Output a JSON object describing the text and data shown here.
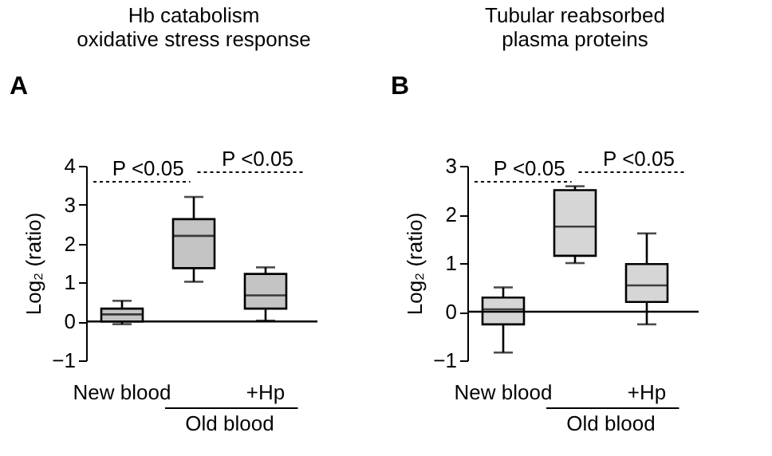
{
  "chart_data": [
    {
      "type": "box",
      "title": "Hb catabolism\noxidative stress response",
      "ylabel": "Log₂ (ratio)",
      "categories": [
        "New blood",
        null,
        "+Hp"
      ],
      "ylim": [
        -1,
        4
      ],
      "yticks": [
        -1,
        0,
        1,
        2,
        3,
        4
      ],
      "grid": false,
      "series": [
        {
          "color": "#c4c4c4",
          "boxes": [
            {
              "low": -0.07,
              "q1": 0.0,
              "median": 0.18,
              "q3": 0.33,
              "high": 0.53
            },
            {
              "low": 1.02,
              "q1": 1.37,
              "median": 2.2,
              "q3": 2.63,
              "high": 3.2
            },
            {
              "low": 0.02,
              "q1": 0.33,
              "median": 0.67,
              "q3": 1.22,
              "high": 1.39
            }
          ]
        }
      ],
      "ref_lines": [
        {
          "axis": "y",
          "value": 0,
          "label": null
        }
      ],
      "annotations": [
        "A",
        "P <0.05",
        "P <0.05",
        "Old blood"
      ]
    },
    {
      "type": "box",
      "title": "Tubular reabsorbed\nplasma proteins",
      "ylabel": "Log₂ (ratio)",
      "categories": [
        "New blood",
        null,
        "+Hp"
      ],
      "ylim": [
        -1,
        3
      ],
      "yticks": [
        -1,
        0,
        1,
        2,
        3
      ],
      "grid": false,
      "series": [
        {
          "color": "#d6d6d6",
          "boxes": [
            {
              "low": -0.84,
              "q1": -0.26,
              "median": 0.05,
              "q3": 0.29,
              "high": 0.5
            },
            {
              "low": 1.0,
              "q1": 1.15,
              "median": 1.75,
              "q3": 2.5,
              "high": 2.58
            },
            {
              "low": -0.26,
              "q1": 0.2,
              "median": 0.54,
              "q3": 0.98,
              "high": 1.61
            }
          ]
        }
      ],
      "ref_lines": [
        {
          "axis": "y",
          "value": 0,
          "label": null
        }
      ],
      "annotations": [
        "B",
        "P <0.05",
        "P <0.05",
        "Old blood"
      ]
    }
  ]
}
